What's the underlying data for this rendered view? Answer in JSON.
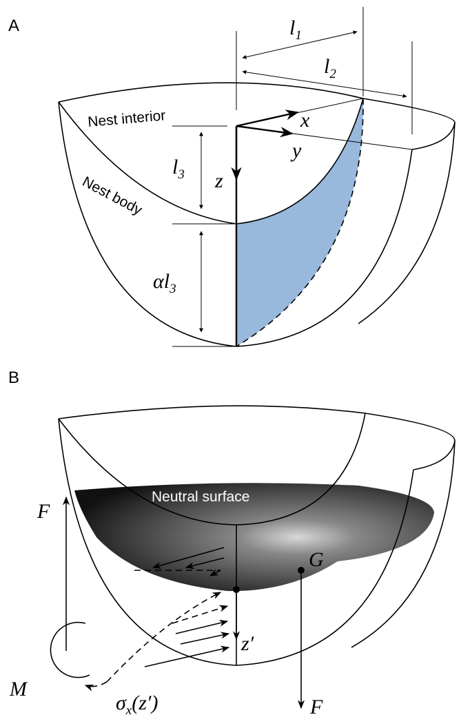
{
  "panel_a": {
    "label": "A",
    "dimensions": {
      "l1": {
        "symbol": "l",
        "sub": "1"
      },
      "l2": {
        "symbol": "l",
        "sub": "2"
      },
      "l3": {
        "symbol": "l",
        "sub": "3"
      },
      "alpha_l3": {
        "symbol": "αl",
        "sub": "3"
      }
    },
    "axes": {
      "x": "x",
      "y": "y",
      "z": "z"
    },
    "regions": {
      "interior": "Nest interior",
      "body": "Nest body"
    }
  },
  "panel_b": {
    "label": "B",
    "surface": "Neutral surface",
    "force_left": "F",
    "centroid": "G",
    "force_down": "F",
    "depth": "z′",
    "moment": "M",
    "stress": {
      "symbol": "σ",
      "sub": "x",
      "arg": "(z′)"
    }
  }
}
